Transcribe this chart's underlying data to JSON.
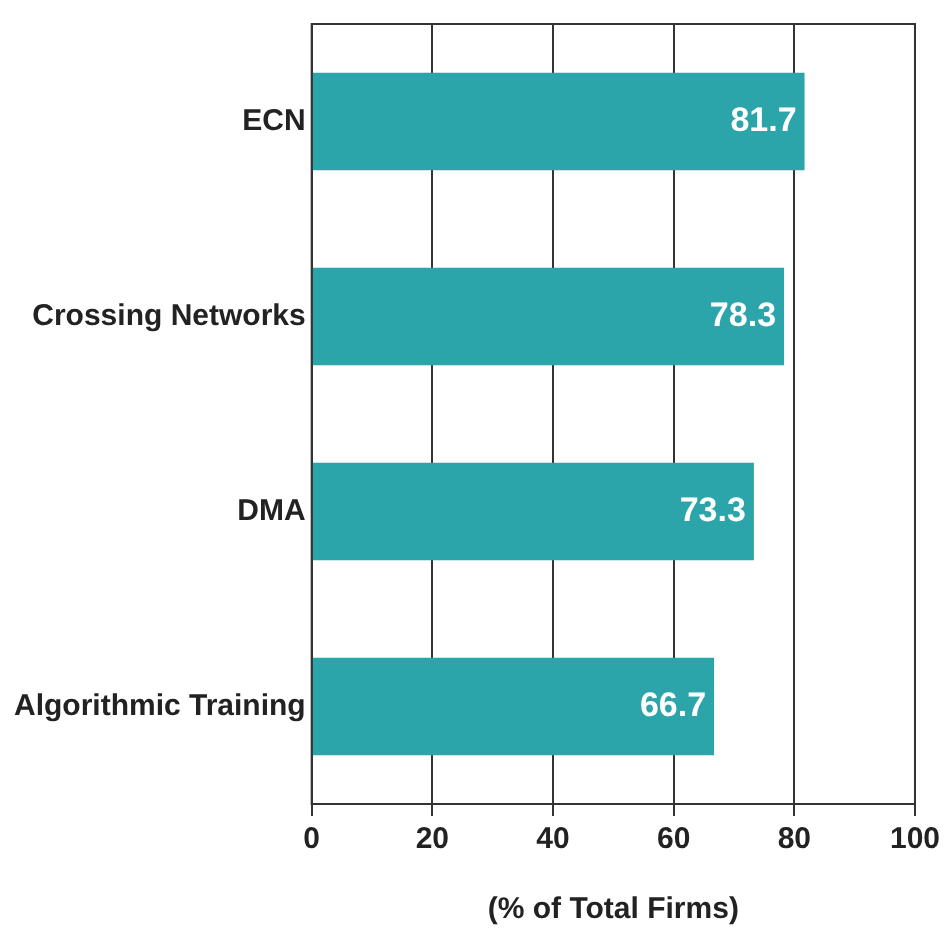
{
  "chart_data": {
    "type": "bar",
    "orientation": "horizontal",
    "categories": [
      "ECN",
      "Crossing Networks",
      "DMA",
      "Algorithmic Training"
    ],
    "values": [
      81.7,
      78.3,
      73.3,
      66.7
    ],
    "color": "#2ba5aa",
    "xlabel": "(% of Total Firms)",
    "xlim": [
      0,
      100
    ],
    "xticks": [
      0,
      20,
      40,
      60,
      80,
      100
    ],
    "grid": "x",
    "data_labels": true
  }
}
